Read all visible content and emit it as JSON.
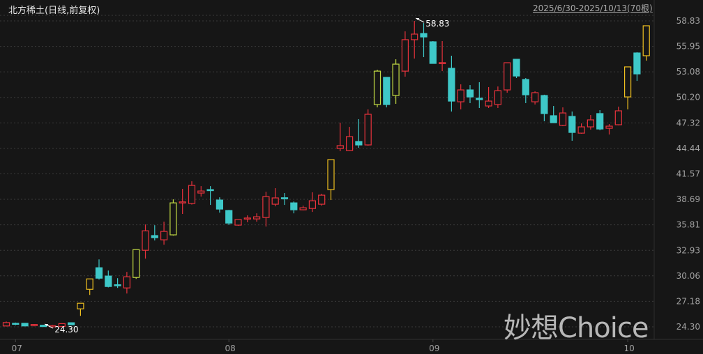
{
  "header": {
    "title": "北方稀土(日线,前复权)",
    "range": "2025/6/30-2025/10/13(70根)"
  },
  "watermark": "妙想Choice",
  "colors": {
    "up": "#e8323c",
    "down": "#3ec8c8",
    "limit": "#f0c020",
    "limit_alt": "#c4dc44",
    "background": "#161616",
    "grid": "#3a3a3a"
  },
  "chart_data": {
    "type": "candlestick",
    "title": "北方稀土(日线,前复权)",
    "ylim": [
      24.3,
      58.83
    ],
    "yticks": [
      "58.83",
      "55.95",
      "53.08",
      "50.20",
      "47.32",
      "44.44",
      "41.57",
      "38.69",
      "35.81",
      "32.93",
      "30.06",
      "27.18",
      "24.30"
    ],
    "xticks": [
      {
        "label": "07",
        "index": 1
      },
      {
        "label": "08",
        "index": 24
      },
      {
        "label": "09",
        "index": 46
      },
      {
        "label": "10",
        "index": 67
      }
    ],
    "grid": true,
    "annotations": [
      {
        "label": "58.83",
        "index": 44,
        "value": 58.83
      },
      {
        "label": "24.30",
        "index": 4,
        "value": 24.3
      }
    ],
    "candles": [
      {
        "o": 24.4,
        "h": 24.9,
        "l": 24.33,
        "c": 24.78,
        "t": "up"
      },
      {
        "o": 24.7,
        "h": 24.78,
        "l": 24.48,
        "c": 24.66,
        "t": "down"
      },
      {
        "o": 24.7,
        "h": 24.72,
        "l": 24.38,
        "c": 24.4,
        "t": "down"
      },
      {
        "o": 24.52,
        "h": 24.6,
        "l": 24.35,
        "c": 24.56,
        "t": "up"
      },
      {
        "o": 24.48,
        "h": 24.52,
        "l": 24.3,
        "c": 24.33,
        "t": "down"
      },
      {
        "o": 24.36,
        "h": 24.5,
        "l": 24.32,
        "c": 24.42,
        "t": "up"
      },
      {
        "o": 24.34,
        "h": 24.7,
        "l": 24.32,
        "c": 24.66,
        "t": "up"
      },
      {
        "o": 24.76,
        "h": 24.8,
        "l": 24.5,
        "c": 24.53,
        "t": "down"
      },
      {
        "o": 26.33,
        "h": 26.96,
        "l": 25.54,
        "c": 26.96,
        "t": "limit"
      },
      {
        "o": 28.53,
        "h": 29.71,
        "l": 27.9,
        "c": 29.71,
        "t": "limit"
      },
      {
        "o": 30.97,
        "h": 31.91,
        "l": 29.63,
        "c": 29.79,
        "t": "down"
      },
      {
        "o": 30.03,
        "h": 30.65,
        "l": 28.75,
        "c": 28.85,
        "t": "down"
      },
      {
        "o": 29.05,
        "h": 29.79,
        "l": 28.69,
        "c": 28.98,
        "t": "down"
      },
      {
        "o": 28.69,
        "h": 30.5,
        "l": 28.06,
        "c": 29.95,
        "t": "up"
      },
      {
        "o": 29.87,
        "h": 33.02,
        "l": 29.71,
        "c": 33.02,
        "t": "limit_alt"
      },
      {
        "o": 32.94,
        "h": 35.85,
        "l": 32.0,
        "c": 35.14,
        "t": "up"
      },
      {
        "o": 34.6,
        "h": 35.77,
        "l": 34.05,
        "c": 34.36,
        "t": "down"
      },
      {
        "o": 34.12,
        "h": 36.17,
        "l": 33.57,
        "c": 35.07,
        "t": "up"
      },
      {
        "o": 34.68,
        "h": 38.69,
        "l": 34.6,
        "c": 38.29,
        "t": "limit_alt"
      },
      {
        "o": 38.32,
        "h": 39.87,
        "l": 37.04,
        "c": 38.4,
        "t": "up"
      },
      {
        "o": 38.22,
        "h": 40.73,
        "l": 38.1,
        "c": 40.26,
        "t": "up"
      },
      {
        "o": 39.4,
        "h": 40.18,
        "l": 39.0,
        "c": 39.63,
        "t": "up"
      },
      {
        "o": 39.79,
        "h": 40.18,
        "l": 38.06,
        "c": 39.72,
        "t": "down"
      },
      {
        "o": 38.61,
        "h": 38.92,
        "l": 37.19,
        "c": 37.59,
        "t": "down"
      },
      {
        "o": 37.43,
        "h": 37.5,
        "l": 35.78,
        "c": 36.01,
        "t": "down"
      },
      {
        "o": 35.78,
        "h": 36.41,
        "l": 35.7,
        "c": 36.41,
        "t": "up"
      },
      {
        "o": 36.52,
        "h": 36.88,
        "l": 36.1,
        "c": 36.58,
        "t": "up"
      },
      {
        "o": 36.48,
        "h": 37.11,
        "l": 36.17,
        "c": 36.72,
        "t": "up"
      },
      {
        "o": 36.64,
        "h": 39.55,
        "l": 35.62,
        "c": 39.0,
        "t": "up"
      },
      {
        "o": 38.14,
        "h": 39.95,
        "l": 37.9,
        "c": 38.85,
        "t": "up"
      },
      {
        "o": 38.87,
        "h": 39.4,
        "l": 38.06,
        "c": 38.82,
        "t": "down"
      },
      {
        "o": 38.29,
        "h": 38.45,
        "l": 37.11,
        "c": 37.51,
        "t": "down"
      },
      {
        "o": 37.51,
        "h": 37.98,
        "l": 37.45,
        "c": 37.74,
        "t": "up"
      },
      {
        "o": 37.66,
        "h": 39.48,
        "l": 37.27,
        "c": 38.53,
        "t": "up"
      },
      {
        "o": 38.14,
        "h": 39.32,
        "l": 37.98,
        "c": 39.16,
        "t": "up"
      },
      {
        "o": 39.79,
        "h": 43.17,
        "l": 38.61,
        "c": 43.17,
        "t": "limit"
      },
      {
        "o": 44.43,
        "h": 47.34,
        "l": 44.12,
        "c": 44.75,
        "t": "up"
      },
      {
        "o": 44.2,
        "h": 46.87,
        "l": 44.15,
        "c": 45.77,
        "t": "up"
      },
      {
        "o": 45.22,
        "h": 47.74,
        "l": 44.51,
        "c": 44.83,
        "t": "down"
      },
      {
        "o": 44.83,
        "h": 48.84,
        "l": 44.75,
        "c": 48.29,
        "t": "up"
      },
      {
        "o": 49.39,
        "h": 53.32,
        "l": 49.07,
        "c": 53.16,
        "t": "limit_alt"
      },
      {
        "o": 52.46,
        "h": 52.46,
        "l": 49.07,
        "c": 49.39,
        "t": "down"
      },
      {
        "o": 50.41,
        "h": 54.5,
        "l": 49.47,
        "c": 53.95,
        "t": "limit_alt"
      },
      {
        "o": 53.16,
        "h": 57.65,
        "l": 52.54,
        "c": 56.71,
        "t": "up"
      },
      {
        "o": 56.71,
        "h": 58.83,
        "l": 54.58,
        "c": 57.34,
        "t": "up"
      },
      {
        "o": 57.41,
        "h": 58.59,
        "l": 54.74,
        "c": 57.02,
        "t": "down"
      },
      {
        "o": 56.47,
        "h": 56.55,
        "l": 54.0,
        "c": 54.03,
        "t": "down"
      },
      {
        "o": 54.05,
        "h": 56.55,
        "l": 53.16,
        "c": 54.12,
        "t": "up"
      },
      {
        "o": 53.48,
        "h": 54.9,
        "l": 48.6,
        "c": 49.78,
        "t": "down"
      },
      {
        "o": 49.7,
        "h": 51.67,
        "l": 48.84,
        "c": 51.04,
        "t": "up"
      },
      {
        "o": 51.04,
        "h": 51.59,
        "l": 49.55,
        "c": 50.25,
        "t": "down"
      },
      {
        "o": 50.1,
        "h": 51.91,
        "l": 49.0,
        "c": 49.94,
        "t": "down"
      },
      {
        "o": 49.23,
        "h": 51.36,
        "l": 49.0,
        "c": 49.78,
        "t": "up"
      },
      {
        "o": 49.39,
        "h": 51.43,
        "l": 49.0,
        "c": 50.96,
        "t": "up"
      },
      {
        "o": 51.04,
        "h": 54.11,
        "l": 50.73,
        "c": 54.11,
        "t": "up"
      },
      {
        "o": 54.5,
        "h": 54.5,
        "l": 52.38,
        "c": 52.61,
        "t": "down"
      },
      {
        "o": 52.22,
        "h": 52.38,
        "l": 49.55,
        "c": 50.49,
        "t": "down"
      },
      {
        "o": 49.7,
        "h": 50.88,
        "l": 49.39,
        "c": 50.73,
        "t": "up"
      },
      {
        "o": 50.41,
        "h": 50.5,
        "l": 47.5,
        "c": 48.37,
        "t": "down"
      },
      {
        "o": 48.13,
        "h": 49.23,
        "l": 47.3,
        "c": 47.34,
        "t": "down"
      },
      {
        "o": 47.03,
        "h": 49.07,
        "l": 46.95,
        "c": 48.44,
        "t": "up"
      },
      {
        "o": 48.05,
        "h": 48.6,
        "l": 45.3,
        "c": 46.24,
        "t": "down"
      },
      {
        "o": 46.16,
        "h": 47.26,
        "l": 46.1,
        "c": 46.87,
        "t": "up"
      },
      {
        "o": 46.87,
        "h": 48.21,
        "l": 46.56,
        "c": 47.66,
        "t": "up"
      },
      {
        "o": 48.37,
        "h": 48.76,
        "l": 46.48,
        "c": 46.63,
        "t": "down"
      },
      {
        "o": 46.71,
        "h": 47.19,
        "l": 46.01,
        "c": 46.95,
        "t": "up"
      },
      {
        "o": 47.11,
        "h": 49.15,
        "l": 47.05,
        "c": 48.68,
        "t": "up"
      },
      {
        "o": 50.25,
        "h": 53.64,
        "l": 48.84,
        "c": 53.64,
        "t": "limit"
      },
      {
        "o": 55.21,
        "h": 55.3,
        "l": 52.06,
        "c": 52.85,
        "t": "down"
      },
      {
        "o": 54.9,
        "h": 58.28,
        "l": 54.35,
        "c": 58.28,
        "t": "limit"
      }
    ]
  }
}
